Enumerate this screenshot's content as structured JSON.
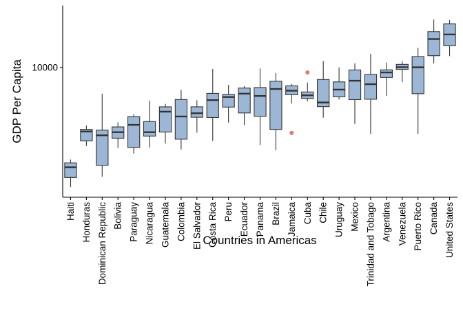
{
  "chart_data": {
    "type": "boxplot",
    "title": "",
    "xlabel": "Countries in Americas",
    "ylabel": "GDP Per Capita",
    "y_scale": "log",
    "ylim": [
      1000,
      30000
    ],
    "y_ticks": [
      {
        "value": 10000,
        "label": "10000"
      }
    ],
    "grid": false,
    "legend": "none",
    "colors": {
      "box_fill": "#9cb7d6",
      "stroke": "#333333",
      "outlier": "#e08080",
      "outlier_stroke": "#c05050"
    },
    "categories": [
      "Haiti",
      "Honduras",
      "Dominican Republic",
      "Bolivia",
      "Paraguay",
      "Nicaragua",
      "Guatemala",
      "Colombia",
      "El Salvador",
      "Costa Rica",
      "Peru",
      "Ecuador",
      "Panama",
      "Brazil",
      "Jamaica",
      "Cuba",
      "Chile",
      "Uruguay",
      "Mexico",
      "Trinidad and Tobago",
      "Argentina",
      "Venezuela",
      "Puerto Rico",
      "Canada",
      "United States"
    ],
    "boxes": [
      {
        "category": "Haiti",
        "whisker_low": 1200,
        "q1": 1420,
        "median": 1700,
        "q3": 1840,
        "whisker_high": 1950,
        "outliers": []
      },
      {
        "category": "Honduras",
        "whisker_low": 2480,
        "q1": 2720,
        "median": 3210,
        "q3": 3330,
        "whisker_high": 3570,
        "outliers": []
      },
      {
        "category": "Dominican Republic",
        "whisker_low": 1440,
        "q1": 1760,
        "median": 3000,
        "q3": 3290,
        "whisker_high": 6280,
        "outliers": []
      },
      {
        "category": "Bolivia",
        "whisker_low": 2400,
        "q1": 2850,
        "median": 3170,
        "q3": 3480,
        "whisker_high": 3780,
        "outliers": []
      },
      {
        "category": "Paraguay",
        "whisker_low": 2170,
        "q1": 2420,
        "median": 3610,
        "q3": 4180,
        "whisker_high": 4350,
        "outliers": []
      },
      {
        "category": "Nicaragua",
        "whisker_low": 2410,
        "q1": 2960,
        "median": 3170,
        "q3": 3830,
        "whisker_high": 5550,
        "outliers": []
      },
      {
        "category": "Guatemala",
        "whisker_low": 2590,
        "q1": 3180,
        "median": 4560,
        "q3": 4970,
        "whisker_high": 5240,
        "outliers": []
      },
      {
        "category": "Colombia",
        "whisker_low": 2330,
        "q1": 2800,
        "median": 4190,
        "q3": 5660,
        "whisker_high": 6720,
        "outliers": []
      },
      {
        "category": "El Salvador",
        "whisker_low": 3140,
        "q1": 4130,
        "median": 4440,
        "q3": 4970,
        "whisker_high": 5580,
        "outliers": []
      },
      {
        "category": "Costa Rica",
        "whisker_low": 2710,
        "q1": 4110,
        "median": 5600,
        "q3": 6310,
        "whisker_high": 9730,
        "outliers": []
      },
      {
        "category": "Peru",
        "whisker_low": 3760,
        "q1": 4950,
        "median": 5920,
        "q3": 6200,
        "whisker_high": 7330,
        "outliers": []
      },
      {
        "category": "Ecuador",
        "whisker_low": 3600,
        "q1": 4460,
        "median": 6280,
        "q3": 6940,
        "whisker_high": 7170,
        "outliers": []
      },
      {
        "category": "Panama",
        "whisker_low": 2530,
        "q1": 4210,
        "median": 6030,
        "q3": 7000,
        "whisker_high": 9810,
        "outliers": []
      },
      {
        "category": "Brazil",
        "whisker_low": 2300,
        "q1": 3330,
        "median": 6820,
        "q3": 7830,
        "whisker_high": 9070,
        "outliers": []
      },
      {
        "category": "Jamaica",
        "whisker_low": 5280,
        "q1": 6160,
        "median": 6620,
        "q3": 7210,
        "whisker_high": 7460,
        "outliers": [
          3130
        ]
      },
      {
        "category": "Cuba",
        "whisker_low": 5470,
        "q1": 5770,
        "median": 6100,
        "q3": 6470,
        "whisker_high": 7640,
        "outliers": [
          9150
        ]
      },
      {
        "category": "Chile",
        "whisker_low": 4100,
        "q1": 4990,
        "median": 5370,
        "q3": 8070,
        "whisker_high": 11200,
        "outliers": []
      },
      {
        "category": "Uruguay",
        "whisker_low": 5660,
        "q1": 5940,
        "median": 6750,
        "q3": 7740,
        "whisker_high": 10000,
        "outliers": []
      },
      {
        "category": "Mexico",
        "whisker_low": 3670,
        "q1": 5650,
        "median": 7900,
        "q3": 9560,
        "whisker_high": 10750,
        "outliers": []
      },
      {
        "category": "Trinidad and Tobago",
        "whisker_low": 3080,
        "q1": 5690,
        "median": 7430,
        "q3": 8830,
        "whisker_high": 12740,
        "outliers": []
      },
      {
        "category": "Argentina",
        "whisker_low": 6030,
        "q1": 8370,
        "median": 9150,
        "q3": 9580,
        "whisker_high": 10900,
        "outliers": []
      },
      {
        "category": "Venezuela",
        "whisker_low": 7700,
        "q1": 9660,
        "median": 10040,
        "q3": 10560,
        "whisker_high": 11170,
        "outliers": []
      },
      {
        "category": "Puerto Rico",
        "whisker_low": 3080,
        "q1": 6280,
        "median": 10020,
        "q3": 12130,
        "whisker_high": 14180,
        "outliers": []
      },
      {
        "category": "Canada",
        "whisker_low": 10750,
        "q1": 12320,
        "median": 16570,
        "q3": 18890,
        "whisker_high": 23380,
        "outliers": []
      },
      {
        "category": "United States",
        "whisker_low": 12230,
        "q1": 14690,
        "median": 17960,
        "q3": 21650,
        "whisker_high": 23180,
        "outliers": []
      }
    ]
  }
}
